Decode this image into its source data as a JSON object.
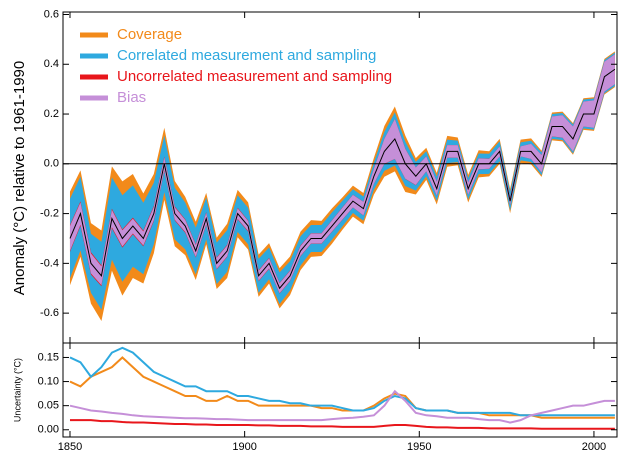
{
  "chart_data": {
    "type": "band",
    "ylabel": "Anomaly (°C) relative to 1961-1990",
    "uncertainty_ylabel": "Uncertainty (°C)",
    "x": [
      1850,
      1853,
      1856,
      1859,
      1862,
      1865,
      1868,
      1871,
      1874,
      1877,
      1880,
      1883,
      1886,
      1889,
      1892,
      1895,
      1898,
      1901,
      1904,
      1907,
      1910,
      1913,
      1916,
      1919,
      1922,
      1925,
      1928,
      1931,
      1934,
      1937,
      1940,
      1943,
      1946,
      1949,
      1952,
      1955,
      1958,
      1961,
      1964,
      1967,
      1970,
      1973,
      1976,
      1979,
      1982,
      1985,
      1988,
      1991,
      1994,
      1997,
      2000,
      2003,
      2006
    ],
    "values": [
      -0.3,
      -0.2,
      -0.4,
      -0.45,
      -0.22,
      -0.3,
      -0.25,
      -0.3,
      -0.2,
      0.0,
      -0.2,
      -0.25,
      -0.35,
      -0.22,
      -0.4,
      -0.35,
      -0.2,
      -0.25,
      -0.45,
      -0.4,
      -0.5,
      -0.45,
      -0.35,
      -0.3,
      -0.3,
      -0.25,
      -0.2,
      -0.15,
      -0.18,
      -0.05,
      0.05,
      0.1,
      0.0,
      -0.05,
      0.0,
      -0.1,
      0.05,
      0.05,
      -0.1,
      0.0,
      0.0,
      0.05,
      -0.15,
      0.05,
      0.05,
      0.0,
      0.15,
      0.15,
      0.1,
      0.2,
      0.2,
      0.35,
      0.38
    ],
    "line_color": "#000000",
    "series": [
      {
        "name": "Coverage",
        "color": "#f28a1a",
        "values": [
          0.1,
          0.09,
          0.11,
          0.12,
          0.13,
          0.15,
          0.13,
          0.11,
          0.1,
          0.09,
          0.08,
          0.07,
          0.07,
          0.06,
          0.06,
          0.07,
          0.06,
          0.06,
          0.05,
          0.05,
          0.05,
          0.05,
          0.05,
          0.05,
          0.045,
          0.045,
          0.04,
          0.04,
          0.04,
          0.05,
          0.065,
          0.075,
          0.07,
          0.045,
          0.04,
          0.04,
          0.04,
          0.035,
          0.035,
          0.035,
          0.03,
          0.03,
          0.03,
          0.03,
          0.03,
          0.025,
          0.025,
          0.025,
          0.025,
          0.025,
          0.025,
          0.025,
          0.025
        ]
      },
      {
        "name": "Correlated measurement and sampling",
        "color": "#2ea9df",
        "values": [
          0.15,
          0.14,
          0.11,
          0.13,
          0.16,
          0.17,
          0.16,
          0.14,
          0.12,
          0.11,
          0.1,
          0.09,
          0.09,
          0.08,
          0.08,
          0.08,
          0.07,
          0.07,
          0.065,
          0.06,
          0.06,
          0.055,
          0.055,
          0.05,
          0.05,
          0.05,
          0.045,
          0.04,
          0.04,
          0.045,
          0.06,
          0.07,
          0.065,
          0.045,
          0.04,
          0.04,
          0.04,
          0.035,
          0.035,
          0.035,
          0.035,
          0.035,
          0.035,
          0.03,
          0.03,
          0.03,
          0.03,
          0.03,
          0.03,
          0.03,
          0.03,
          0.03,
          0.03
        ]
      },
      {
        "name": "Uncorrelated measurement and sampling",
        "color": "#e8161b",
        "values": [
          0.02,
          0.02,
          0.02,
          0.018,
          0.018,
          0.016,
          0.015,
          0.015,
          0.014,
          0.013,
          0.012,
          0.012,
          0.011,
          0.011,
          0.01,
          0.01,
          0.01,
          0.01,
          0.009,
          0.009,
          0.008,
          0.008,
          0.008,
          0.007,
          0.007,
          0.007,
          0.006,
          0.006,
          0.006,
          0.006,
          0.008,
          0.01,
          0.01,
          0.008,
          0.006,
          0.005,
          0.005,
          0.004,
          0.004,
          0.004,
          0.003,
          0.003,
          0.003,
          0.003,
          0.003,
          0.002,
          0.002,
          0.002,
          0.002,
          0.002,
          0.002,
          0.002,
          0.002
        ]
      },
      {
        "name": "Bias",
        "color": "#c58fd8",
        "values": [
          0.05,
          0.045,
          0.04,
          0.038,
          0.035,
          0.033,
          0.03,
          0.028,
          0.027,
          0.026,
          0.025,
          0.024,
          0.024,
          0.023,
          0.022,
          0.022,
          0.021,
          0.02,
          0.02,
          0.02,
          0.02,
          0.02,
          0.02,
          0.02,
          0.02,
          0.022,
          0.024,
          0.025,
          0.027,
          0.03,
          0.05,
          0.08,
          0.06,
          0.035,
          0.03,
          0.028,
          0.025,
          0.025,
          0.025,
          0.022,
          0.02,
          0.02,
          0.015,
          0.02,
          0.03,
          0.035,
          0.04,
          0.045,
          0.05,
          0.05,
          0.055,
          0.06,
          0.06
        ]
      }
    ],
    "legend": "upper left",
    "xlim": [
      1848,
      2006.6
    ],
    "xticks": [
      1850,
      1900,
      1950,
      2000
    ],
    "ylim": [
      -0.72,
      0.61
    ],
    "yticks": [
      -0.6,
      -0.4,
      -0.2,
      {
        "value": 0,
        "label": "0.0"
      },
      0.2,
      0.4,
      0.6
    ],
    "uncertainty_ylim": [
      -0.015,
      0.18
    ],
    "uncertainty_yticks": [
      {
        "value": 0,
        "label": "0.00"
      },
      0.05,
      {
        "value": 0.1,
        "label": "0.10"
      },
      0.15
    ]
  }
}
